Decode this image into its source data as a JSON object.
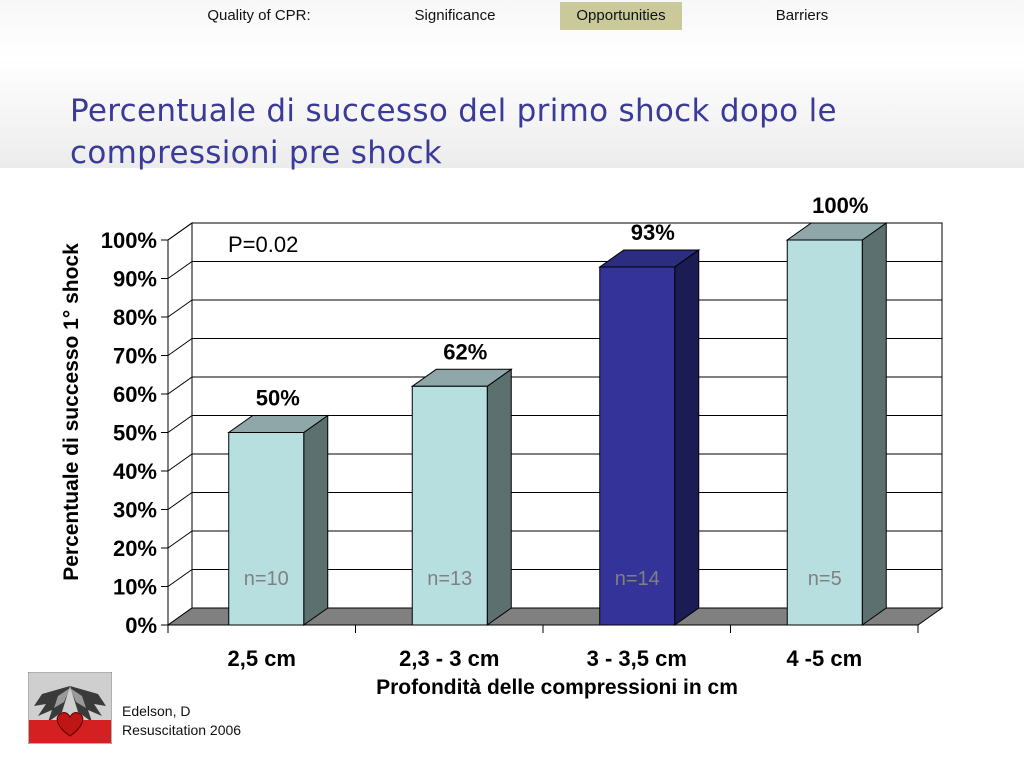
{
  "nav": {
    "items": [
      {
        "label": "Quality of CPR:",
        "active": false
      },
      {
        "label": "Significance",
        "active": false
      },
      {
        "label": "Opportunities",
        "active": true
      },
      {
        "label": "Barriers",
        "active": false
      }
    ],
    "active_color": "#c9c99a"
  },
  "title": "Percentuale di successo del primo shock dopo le compressioni pre shock",
  "citation": {
    "line1": "Edelson, D",
    "line2": "Resuscitation 2006"
  },
  "chart_data": {
    "type": "bar",
    "categories": [
      "2,5 cm",
      "2,3 - 3 cm",
      "3 - 3,5 cm",
      "4 -5 cm"
    ],
    "values": [
      50,
      62,
      93,
      100
    ],
    "value_labels": [
      "50%",
      "62%",
      "93%",
      "100%"
    ],
    "n_labels": [
      "n=10",
      "n=13",
      "n=14",
      "n=5"
    ],
    "ylabel": "Percentuale di successo  1° shock",
    "xlabel": "Profondità delle compressioni in cm",
    "yticks": [
      "0%",
      "10%",
      "20%",
      "30%",
      "40%",
      "50%",
      "60%",
      "70%",
      "80%",
      "90%",
      "100%"
    ],
    "ylim": [
      0,
      100
    ],
    "annotation": "P=0.02",
    "grid": true,
    "three_d": true,
    "colors": {
      "bar_front": "#b8dfe0",
      "bar_side": "#5c7070",
      "bar_top": "#8fa7a8",
      "highlight_front": "#333399",
      "highlight_side": "#1c1c55",
      "highlight_top": "#2c2c80",
      "floor": "#808080",
      "n_label": "#808080"
    },
    "highlight_index": 2
  }
}
